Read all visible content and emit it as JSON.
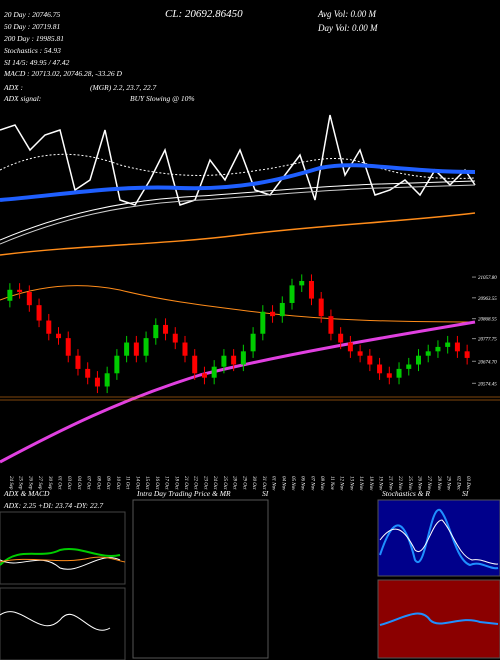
{
  "chart_data": {
    "type": "candlestick",
    "header": {
      "ma20": "20 Day : 20746.75",
      "ma50": "50 Day : 20719.81",
      "ma200": "200 Day : 19985.81",
      "stoch": "Stochastics : 54.93",
      "rsi": "SI 14/5: 49.95 / 47.42",
      "macd": "MACD : 20713.02, 20746.28, -33.26  D",
      "adx": "ADX :",
      "adx_values": "(MGR) 2.2, 23.7, 22.7",
      "adx_signal": "ADX  signal:",
      "signal": "BUY Slowing @ 10%",
      "close": "CL: 20692.86450",
      "avg_vol": "Avg Vol: 0.00  M",
      "day_vol": "Day Vol: 0.00  M"
    },
    "panels": {
      "adx_title": "ADX  & MACD",
      "adx_values": "ADX: 2.25  +DI: 23.74  -DY: 22.7",
      "intraday": "Intra Day Trading Price  & MR",
      "intraday_si": "SI",
      "stoch_title": "Stochastics & R",
      "stoch_si": "SI"
    },
    "categories": [
      "24 Sep",
      "25 Sep",
      "26 Sep",
      "27 Sep",
      "30 Sep",
      "01 Oct",
      "03 Oct",
      "04 Oct",
      "07 Oct",
      "08 Oct",
      "09 Oct",
      "10 Oct",
      "11 Oct",
      "14 Oct",
      "15 Oct",
      "16 Oct",
      "17 Oct",
      "18 Oct",
      "21 Oct",
      "22 Oct",
      "23 Oct",
      "24 Oct",
      "25 Oct",
      "28 Oct",
      "29 Oct",
      "30 Oct",
      "31 Oct",
      "01 Nov",
      "04 Nov",
      "05 Nov",
      "06 Nov",
      "07 Nov",
      "08 Nov",
      "11 Nov",
      "12 Nov",
      "13 Nov",
      "14 Nov",
      "18 Nov",
      "19 Nov",
      "21 Nov",
      "22 Nov",
      "25 Nov",
      "26 Nov",
      "27 Nov",
      "28 Nov",
      "29 Nov",
      "02 Dec",
      "03 Dec"
    ],
    "open": [
      20950,
      21000,
      20990,
      20930,
      20860,
      20800,
      20780,
      20700,
      20640,
      20600,
      20560,
      20620,
      20700,
      20760,
      20700,
      20780,
      20840,
      20800,
      20760,
      20700,
      20620,
      20600,
      20650,
      20700,
      20660,
      20720,
      20800,
      20900,
      20880,
      20940,
      21020,
      21040,
      20960,
      20880,
      20800,
      20760,
      20720,
      20700,
      20660,
      20620,
      20600,
      20640,
      20660,
      20700,
      20720,
      20740,
      20760,
      20720
    ],
    "close": [
      21000,
      20990,
      20930,
      20860,
      20800,
      20780,
      20700,
      20640,
      20600,
      20560,
      20620,
      20700,
      20760,
      20700,
      20780,
      20840,
      20800,
      20760,
      20700,
      20620,
      20600,
      20650,
      20700,
      20660,
      20720,
      20800,
      20900,
      20880,
      20940,
      21020,
      21040,
      20960,
      20880,
      20800,
      20760,
      20720,
      20700,
      20660,
      20620,
      20600,
      20640,
      20660,
      20700,
      20720,
      20740,
      20760,
      20720,
      20690
    ],
    "high": [
      21030,
      21030,
      21020,
      20960,
      20890,
      20830,
      20810,
      20730,
      20670,
      20630,
      20650,
      20730,
      20790,
      20790,
      20810,
      20870,
      20870,
      20830,
      20790,
      20730,
      20650,
      20680,
      20730,
      20730,
      20750,
      20830,
      20930,
      20930,
      20970,
      21050,
      21070,
      21070,
      20990,
      20910,
      20830,
      20790,
      20750,
      20730,
      20690,
      20650,
      20670,
      20690,
      20730,
      20750,
      20770,
      20790,
      20790,
      20750
    ],
    "low": [
      20920,
      20960,
      20900,
      20830,
      20770,
      20750,
      20670,
      20610,
      20570,
      20530,
      20530,
      20590,
      20670,
      20670,
      20670,
      20750,
      20770,
      20730,
      20670,
      20590,
      20570,
      20570,
      20620,
      20630,
      20630,
      20690,
      20770,
      20850,
      20850,
      20910,
      20990,
      20930,
      20850,
      20770,
      20730,
      20690,
      20670,
      20630,
      20590,
      20570,
      20570,
      20610,
      20630,
      20670,
      20690,
      20710,
      20690,
      20660
    ],
    "up_color": "#00cc00",
    "down_color": "#ff0000",
    "ylim": [
      20180,
      21090
    ],
    "yticks": [
      {
        "value": 21057.8,
        "label": "21057.80"
      },
      {
        "value": 20963.55,
        "label": "20963.55"
      },
      {
        "value": 20868.55,
        "label": "20868.55"
      },
      {
        "value": 20777.75,
        "label": "20777.75"
      },
      {
        "value": 20674.7,
        "label": "20674.70"
      },
      {
        "value": 20574.45,
        "label": "20574.45"
      }
    ]
  }
}
